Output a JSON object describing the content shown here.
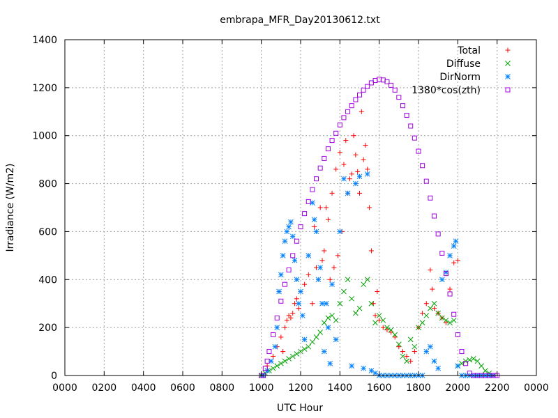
{
  "chart_data": {
    "type": "scatter",
    "title": "embrapa_MFR_Day20130612.txt",
    "xlabel": "UTC Hour",
    "ylabel": "Irradiance (W/m2)",
    "xlim": [
      0,
      2400
    ],
    "ylim": [
      0,
      1400
    ],
    "x_tick_labels": [
      "0000",
      "0200",
      "0400",
      "0600",
      "0800",
      "1000",
      "1200",
      "1400",
      "1600",
      "1800",
      "2000",
      "2200",
      "0000"
    ],
    "y_ticks": [
      0,
      200,
      400,
      600,
      800,
      1000,
      1200,
      1400
    ],
    "grid": true,
    "legend_position": "top-right",
    "series": [
      {
        "name": "Total",
        "color": "#ff0000",
        "marker": "plus",
        "x": [
          1030,
          1060,
          1080,
          1100,
          1110,
          1120,
          1130,
          1140,
          1150,
          1160,
          1170,
          1180,
          1190,
          1200,
          1220,
          1240,
          1260,
          1270,
          1280,
          1300,
          1310,
          1320,
          1330,
          1340,
          1350,
          1360,
          1370,
          1380,
          1390,
          1400,
          1410,
          1420,
          1430,
          1440,
          1450,
          1460,
          1470,
          1480,
          1490,
          1500,
          1510,
          1520,
          1530,
          1540,
          1550,
          1560,
          1570,
          1580,
          1590,
          1600,
          1620,
          1640,
          1660,
          1680,
          1700,
          1720,
          1740,
          1760,
          1780,
          1800,
          1820,
          1840,
          1860,
          1870,
          1880,
          1900,
          1920,
          1940,
          1960,
          1980,
          2000
        ],
        "y": [
          40,
          80,
          120,
          160,
          100,
          200,
          230,
          250,
          240,
          260,
          300,
          320,
          280,
          350,
          380,
          420,
          300,
          620,
          450,
          700,
          480,
          520,
          700,
          650,
          400,
          760,
          450,
          860,
          500,
          930,
          600,
          880,
          980,
          760,
          820,
          840,
          1000,
          920,
          850,
          760,
          1100,
          900,
          960,
          860,
          700,
          520,
          300,
          250,
          350,
          230,
          200,
          190,
          180,
          160,
          120,
          100,
          80,
          60,
          100,
          200,
          260,
          300,
          440,
          360,
          280,
          260,
          240,
          220,
          360,
          470,
          480
        ]
      },
      {
        "name": "Diffuse",
        "color": "#00a000",
        "marker": "cross",
        "x": [
          1000,
          1020,
          1040,
          1060,
          1080,
          1100,
          1120,
          1140,
          1160,
          1180,
          1200,
          1220,
          1240,
          1260,
          1280,
          1300,
          1320,
          1340,
          1360,
          1380,
          1400,
          1420,
          1440,
          1460,
          1480,
          1500,
          1520,
          1540,
          1560,
          1580,
          1600,
          1620,
          1640,
          1660,
          1680,
          1700,
          1720,
          1740,
          1760,
          1780,
          1800,
          1820,
          1840,
          1860,
          1880,
          1900,
          1920,
          1940,
          1960,
          1980,
          2000,
          2020,
          2040,
          2060,
          2080,
          2100,
          2120,
          2140,
          2160,
          2180
        ],
        "y": [
          0,
          10,
          20,
          30,
          40,
          50,
          60,
          70,
          80,
          90,
          100,
          110,
          120,
          140,
          160,
          180,
          220,
          240,
          250,
          230,
          300,
          350,
          400,
          320,
          260,
          280,
          380,
          400,
          300,
          220,
          250,
          230,
          200,
          190,
          170,
          130,
          80,
          60,
          150,
          120,
          200,
          220,
          250,
          280,
          300,
          260,
          240,
          230,
          220,
          230,
          40,
          50,
          60,
          65,
          70,
          60,
          40,
          20,
          10,
          0
        ]
      },
      {
        "name": "DirNorm",
        "color": "#0080ff",
        "marker": "star",
        "x": [
          1010,
          1030,
          1050,
          1070,
          1080,
          1090,
          1100,
          1110,
          1120,
          1130,
          1140,
          1150,
          1160,
          1170,
          1180,
          1190,
          1200,
          1210,
          1220,
          1240,
          1260,
          1270,
          1280,
          1290,
          1300,
          1310,
          1320,
          1330,
          1340,
          1350,
          1360,
          1380,
          1400,
          1420,
          1440,
          1460,
          1480,
          1500,
          1520,
          1540,
          1560,
          1580,
          1600,
          1620,
          1640,
          1660,
          1680,
          1700,
          1720,
          1740,
          1760,
          1780,
          1800,
          1820,
          1840,
          1860,
          1880,
          1900,
          1920,
          1940,
          1960,
          1980,
          1990,
          2000,
          2020,
          2040,
          2060,
          2080,
          2100,
          2120,
          2140,
          2160,
          2180
        ],
        "y": [
          0,
          20,
          60,
          120,
          200,
          350,
          420,
          500,
          560,
          600,
          620,
          640,
          580,
          480,
          400,
          300,
          350,
          250,
          150,
          500,
          720,
          650,
          600,
          400,
          450,
          300,
          100,
          300,
          200,
          50,
          380,
          150,
          600,
          820,
          760,
          40,
          800,
          830,
          30,
          840,
          20,
          10,
          0,
          0,
          0,
          0,
          0,
          0,
          0,
          0,
          0,
          0,
          0,
          0,
          100,
          120,
          60,
          30,
          400,
          430,
          500,
          540,
          560,
          40,
          0,
          0,
          0,
          0,
          0,
          0,
          0,
          0,
          0
        ]
      },
      {
        "name": "1380*cos(zth)",
        "color": "#a000e0",
        "marker": "square",
        "x": [
          1000,
          1010,
          1020,
          1030,
          1040,
          1060,
          1080,
          1100,
          1120,
          1140,
          1160,
          1180,
          1200,
          1220,
          1240,
          1260,
          1280,
          1300,
          1320,
          1340,
          1360,
          1380,
          1400,
          1420,
          1440,
          1460,
          1480,
          1500,
          1520,
          1540,
          1560,
          1580,
          1600,
          1620,
          1640,
          1660,
          1680,
          1700,
          1720,
          1740,
          1760,
          1780,
          1800,
          1820,
          1840,
          1860,
          1880,
          1900,
          1920,
          1940,
          1960,
          1980,
          2000,
          2020,
          2040,
          2060,
          2080,
          2100,
          2120,
          2140,
          2160,
          2180,
          2190,
          2200
        ],
        "y": [
          0,
          0,
          30,
          60,
          100,
          170,
          240,
          310,
          380,
          440,
          500,
          560,
          620,
          675,
          725,
          775,
          820,
          865,
          905,
          945,
          980,
          1010,
          1045,
          1075,
          1100,
          1125,
          1150,
          1170,
          1190,
          1205,
          1220,
          1230,
          1235,
          1232,
          1225,
          1210,
          1190,
          1160,
          1125,
          1085,
          1040,
          990,
          935,
          875,
          810,
          740,
          665,
          590,
          510,
          425,
          340,
          255,
          170,
          100,
          50,
          10,
          0,
          0,
          0,
          0,
          0,
          0,
          0,
          0
        ]
      }
    ]
  }
}
